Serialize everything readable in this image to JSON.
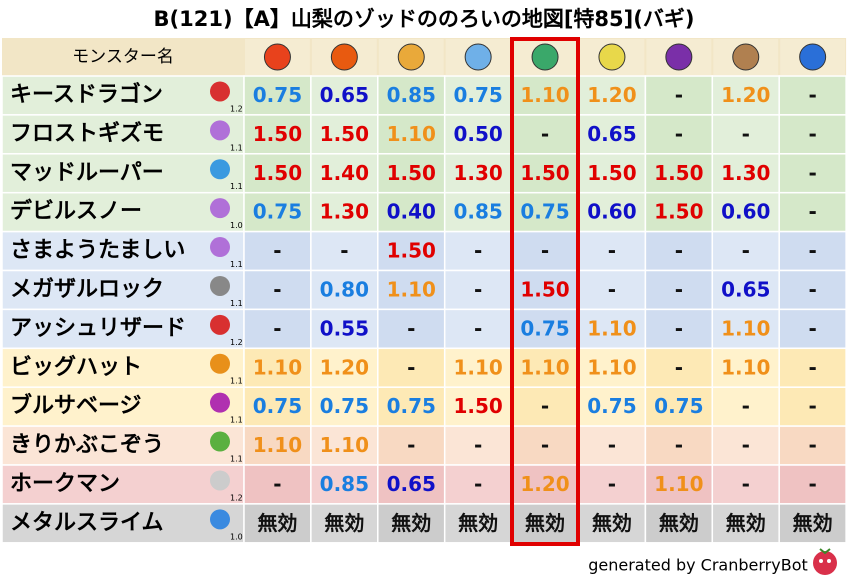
{
  "title": "B(121)【A】山梨のゾッドののろいの地図[特85](バギ)",
  "header": {
    "name_label": "モンスター名"
  },
  "rows": [
    {
      "name": "キースドラゴン",
      "level": "1.2",
      "values": [
        "0.75",
        "0.65",
        "0.85",
        "0.75",
        "1.10",
        "1.20",
        "-",
        "1.20",
        "-"
      ]
    },
    {
      "name": "フロストギズモ",
      "level": "1.1",
      "values": [
        "1.50",
        "1.50",
        "1.10",
        "0.50",
        "-",
        "0.65",
        "-",
        "-",
        "-"
      ]
    },
    {
      "name": "マッドルーパー",
      "level": "1.1",
      "values": [
        "1.50",
        "1.40",
        "1.50",
        "1.30",
        "1.50",
        "1.50",
        "1.50",
        "1.30",
        "-"
      ]
    },
    {
      "name": "デビルスノー",
      "level": "1.0",
      "values": [
        "0.75",
        "1.30",
        "0.40",
        "0.85",
        "0.75",
        "0.60",
        "1.50",
        "0.60",
        "-"
      ]
    },
    {
      "name": "さまようたましい",
      "level": "1.1",
      "values": [
        "-",
        "-",
        "1.50",
        "-",
        "-",
        "-",
        "-",
        "-",
        "-"
      ]
    },
    {
      "name": "メガザルロック",
      "level": "1.1",
      "values": [
        "-",
        "0.80",
        "1.10",
        "-",
        "1.50",
        "-",
        "-",
        "0.65",
        "-"
      ]
    },
    {
      "name": "アッシュリザード",
      "level": "1.2",
      "values": [
        "-",
        "0.55",
        "-",
        "-",
        "0.75",
        "1.10",
        "-",
        "1.10",
        "-"
      ]
    },
    {
      "name": "ビッグハット",
      "level": "1.1",
      "values": [
        "1.10",
        "1.20",
        "-",
        "1.10",
        "1.10",
        "1.10",
        "-",
        "1.10",
        "-"
      ]
    },
    {
      "name": "ブルサベージ",
      "level": "1.1",
      "values": [
        "0.75",
        "0.75",
        "0.75",
        "1.50",
        "-",
        "0.75",
        "0.75",
        "-",
        "-"
      ]
    },
    {
      "name": "きりかぶこぞう",
      "level": "1.1",
      "values": [
        "1.10",
        "1.10",
        "-",
        "-",
        "-",
        "-",
        "-",
        "-",
        "-"
      ]
    },
    {
      "name": "ホークマン",
      "level": "1.2",
      "values": [
        "-",
        "0.85",
        "0.65",
        "-",
        "1.20",
        "-",
        "1.10",
        "-",
        "-"
      ]
    },
    {
      "name": "メタルスライム",
      "level": "1.0",
      "values": [
        "無効",
        "無効",
        "無効",
        "無効",
        "無効",
        "無効",
        "無効",
        "無効",
        "無効"
      ]
    }
  ],
  "footer": "generated by CranberryBot"
}
